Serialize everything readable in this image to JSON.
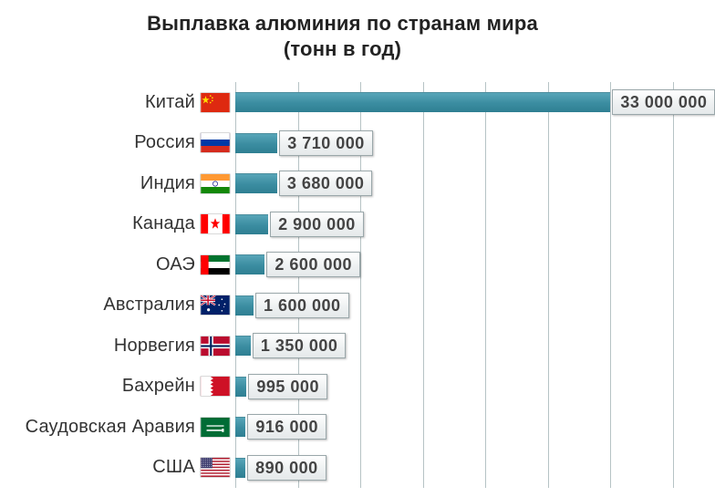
{
  "title_line1": "Выплавка алюминия по странам мира",
  "title_line2": "(тонн в год)",
  "title_fontsize": 22,
  "axis_fontsize": 20,
  "label_fontsize": 20,
  "value_fontsize": 18,
  "background_color": "#ffffff",
  "grid_color": "#b6c3c5",
  "bar_color": "#3b8da1",
  "text_color": "#333333",
  "grid_positions_pct": [
    0,
    14.29,
    28.57,
    42.86,
    57.14,
    71.43,
    85.71,
    100
  ],
  "x_max": 33000000,
  "countries": [
    {
      "name": "Китай",
      "value": 33000000,
      "value_label": "33 000 000",
      "flag": "cn"
    },
    {
      "name": "Россия",
      "value": 3710000,
      "value_label": "3 710 000",
      "flag": "ru"
    },
    {
      "name": "Индия",
      "value": 3680000,
      "value_label": "3 680 000",
      "flag": "in"
    },
    {
      "name": "Канада",
      "value": 2900000,
      "value_label": "2 900 000",
      "flag": "ca"
    },
    {
      "name": "ОАЭ",
      "value": 2600000,
      "value_label": "2 600 000",
      "flag": "ae"
    },
    {
      "name": "Австралия",
      "value": 1600000,
      "value_label": "1 600 000",
      "flag": "au"
    },
    {
      "name": "Норвегия",
      "value": 1350000,
      "value_label": "1 350 000",
      "flag": "no"
    },
    {
      "name": "Бахрейн",
      "value": 995000,
      "value_label": "995 000",
      "flag": "bh"
    },
    {
      "name": "Саудовская Аравия",
      "value": 916000,
      "value_label": "916 000",
      "flag": "sa"
    },
    {
      "name": "США",
      "value": 890000,
      "value_label": "890 000",
      "flag": "us"
    }
  ],
  "flag_colors": {
    "cn": {
      "bg": "#de2910",
      "star": "#ffde00"
    },
    "ru": {
      "top": "#ffffff",
      "mid": "#0039a6",
      "bot": "#d52b1e"
    },
    "in": {
      "top": "#ff9933",
      "mid": "#ffffff",
      "bot": "#138808",
      "wheel": "#000080"
    },
    "ca": {
      "side": "#ff0000",
      "mid": "#ffffff",
      "leaf": "#ff0000"
    },
    "ae": {
      "left": "#ff0000",
      "top": "#00732f",
      "mid": "#ffffff",
      "bot": "#000000"
    },
    "au": {
      "bg": "#012169",
      "cross": "#ffffff",
      "cross2": "#c8102e",
      "star": "#ffffff"
    },
    "no": {
      "bg": "#ba0c2f",
      "white": "#ffffff",
      "blue": "#00205b"
    },
    "bh": {
      "left": "#ffffff",
      "right": "#ce1126"
    },
    "sa": {
      "bg": "#006c35",
      "fg": "#ffffff"
    },
    "us": {
      "stripe1": "#b22234",
      "stripe2": "#ffffff",
      "canton": "#3c3b6e",
      "star": "#ffffff"
    }
  }
}
